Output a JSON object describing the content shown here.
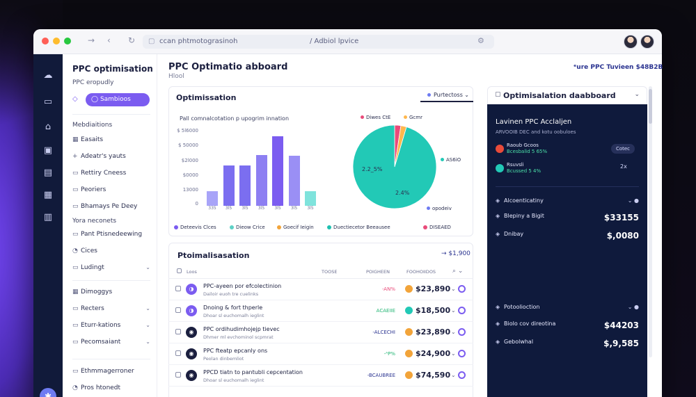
{
  "browser": {
    "url_left": "ccan phtmotograsinoh",
    "url_right": "/ Adbiol lpvice"
  },
  "nav": {
    "title": "PPC optimisation",
    "subtitle": "PPC eropudly",
    "active": "Sambioos",
    "section1": "Mebdiaitions",
    "items1": [
      {
        "label": "Easaits",
        "icon": "▦"
      },
      {
        "label": "Adeatr's yauts",
        "icon": "+"
      },
      {
        "label": "Rettiry Cneess",
        "icon": "▭"
      },
      {
        "label": "Peoriers",
        "icon": "▭"
      },
      {
        "label": "Bhamays Pe Deey",
        "icon": "▭"
      }
    ],
    "section2": "Yora neconets",
    "items2": [
      {
        "label": "Pant Ptisnedeewing",
        "icon": "▭"
      },
      {
        "label": "Cices",
        "icon": "◔"
      },
      {
        "label": "Ludingt",
        "icon": "▭"
      }
    ],
    "items3": [
      {
        "label": "Dimoggys",
        "icon": "▦"
      },
      {
        "label": "Recters",
        "icon": "▭"
      },
      {
        "label": "Eturr-kations",
        "icon": "▭"
      },
      {
        "label": "Pecomsaiant",
        "icon": "▭"
      }
    ],
    "items4": [
      {
        "label": "Ethmmagerroner",
        "icon": "▭"
      },
      {
        "label": "Pros htonedt",
        "icon": "◔"
      }
    ]
  },
  "header": {
    "title": "PPC Optimatio abboard",
    "subtitle": "Hlool",
    "right": "ᵉure PPC Tuvieen $48B2B"
  },
  "chart_card": {
    "title": "Optimissation",
    "filter": "Purtectoss",
    "chart_subtitle": "Pall comnalcotation p upogrim innation"
  },
  "chart_data": [
    {
      "type": "bar",
      "title": "Pall comnalcotation p upogrim innation",
      "y_ticks": [
        "$ 5l6000",
        "$ 50000",
        "$2l000",
        "$0000",
        "13000",
        "0"
      ],
      "categories": [
        "335",
        "3l5",
        "3l5",
        "3l5",
        "3l5",
        "3l5",
        "3l5"
      ],
      "values": [
        11,
        31,
        31,
        39,
        53,
        38,
        11
      ],
      "colors": [
        "#a8a4f8",
        "#7b6ef0",
        "#7b6ef0",
        "#8d7ff2",
        "#7b5cf0",
        "#9a8ff5",
        "#7fe3dc"
      ],
      "ylim": [
        0,
        60
      ]
    },
    {
      "type": "pie",
      "slices": [
        {
          "label": "Diwes CtE",
          "value": 2.4,
          "color": "#e94b7a"
        },
        {
          "label": "Gcmr",
          "value": 2.2,
          "color": "#ffb74d"
        },
        {
          "label": "AS6iO",
          "value": 95.4,
          "color": "#22c9b6"
        }
      ],
      "center_labels": [
        "2.2_5%",
        "2.4%"
      ],
      "extra_label": "opodeiv"
    }
  ],
  "legend": [
    {
      "label": "Deteevis Clces",
      "color": "#7b5cf0"
    },
    {
      "label": "Dieow Crice",
      "color": "#5ed1c6"
    },
    {
      "label": "Goecif Ieigin",
      "color": "#f2a43a"
    },
    {
      "label": "Duectiecetor Beeausee",
      "color": "#1fc0b0"
    },
    {
      "label": "DISEAED",
      "color": "#e94b7a"
    }
  ],
  "table": {
    "title": "Ptoimalisasation",
    "amount": "$1,900",
    "headers": [
      "Loos",
      "TOOSE",
      "POIGHEEN",
      "FOOHOIIDOS"
    ],
    "rows": [
      {
        "name": "PPC-ayeen por efcolectinion",
        "sub": "Dailoir euoh tre cuelinks",
        "status": "-AN%",
        "status_color": "#e94b7a",
        "amount": "$23,890",
        "icon_color": "#7b5cf0",
        "icon": "◑",
        "coin": "#f2a43a"
      },
      {
        "name": "Dnoing & fort thperle",
        "sub": "Dhoar sl euchomalh ieglint",
        "status": "ACAEIIE",
        "status_color": "#22b573",
        "amount": "$18,500",
        "icon_color": "#7b5cf0",
        "icon": "◑",
        "coin": "#22c9b6"
      },
      {
        "name": "PPC ordihudimhojejp tievec",
        "sub": "Dhmer ml evchominol scpmrat",
        "status": "-ALCECHI",
        "status_color": "#2a3390",
        "amount": "$23,890",
        "icon_color": "#1b1f3f",
        "icon": "◉",
        "coin": "#f2a43a"
      },
      {
        "name": "PPC fteatp epcanly ons",
        "sub": "Peolan dinbemliot",
        "status": "-ᴬP%",
        "status_color": "#22b573",
        "amount": "$24,900",
        "icon_color": "#1b1f3f",
        "icon": "◉",
        "coin": "#f2a43a"
      },
      {
        "name": "PPCD tiatn to pantubli cepcentation",
        "sub": "Dhoar sl euchomalh ieglint",
        "status": "-BCAUBREE",
        "status_color": "#2a3390",
        "amount": "$74,590",
        "icon_color": "#1b1f3f",
        "icon": "◉",
        "coin": "#f2a43a"
      }
    ]
  },
  "rpanel": {
    "head_title": "Optimisalation daabboard",
    "title": "Lavinen PPC Acclaljen",
    "subtitle": "ARVOOIB DEC and kotu oobuloes",
    "accounts": [
      {
        "name": "Raoub Gcoos",
        "sub": "Bcesbalid 5 65%",
        "color": "#e94b3a"
      },
      {
        "name": "Rsuvsli",
        "sub": "Bcussed 5 4%",
        "color": "#22c9b6"
      }
    ],
    "btn": "Cotec",
    "mini": "2x",
    "lines1": [
      {
        "label": "Alcoenticatiny",
        "value": "",
        "chev": "⌄ ●"
      },
      {
        "label": "Blepiny a Bigit",
        "value": "$33155",
        "chev": ""
      },
      {
        "label": "Dnibay",
        "value": "$,0080",
        "chev": ""
      }
    ],
    "lines2": [
      {
        "label": "Potoolioction",
        "value": "",
        "chev": "⌄ ●"
      },
      {
        "label": "Biolo cov direotina",
        "value": "$44203",
        "chev": ""
      },
      {
        "label": "Gebolwhal",
        "value": "$,9,585",
        "chev": ""
      }
    ]
  }
}
